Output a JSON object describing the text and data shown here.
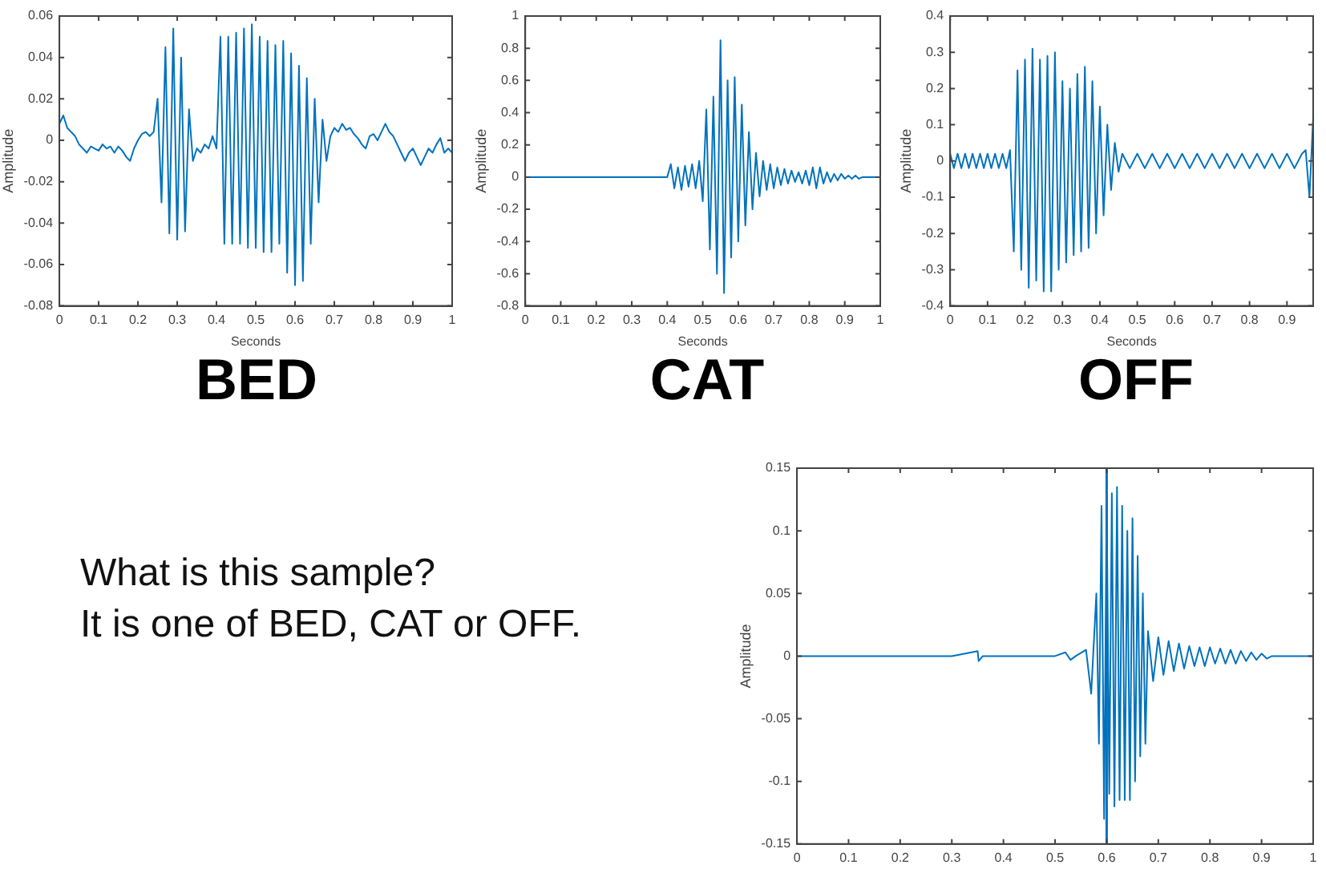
{
  "chart_data": [
    {
      "type": "line",
      "title": "BED",
      "xlabel": "Seconds",
      "ylabel": "Amplitude",
      "xlim": [
        0,
        1
      ],
      "xticks": [
        0,
        0.1,
        0.2,
        0.3,
        0.4,
        0.5,
        0.6,
        0.7,
        0.8,
        0.9,
        1
      ],
      "ylim": [
        -0.08,
        0.06
      ],
      "yticks": [
        -0.08,
        -0.06,
        -0.04,
        -0.02,
        0,
        0.02,
        0.04,
        0.06
      ],
      "grid": false,
      "legend": false,
      "marker": "none",
      "series": [
        {
          "color": "#0072bd",
          "x": [
            0,
            0.01,
            0.02,
            0.03,
            0.04,
            0.05,
            0.06,
            0.07,
            0.08,
            0.09,
            0.1,
            0.11,
            0.12,
            0.13,
            0.14,
            0.15,
            0.16,
            0.17,
            0.18,
            0.19,
            0.2,
            0.21,
            0.22,
            0.23,
            0.24,
            0.25,
            0.26,
            0.27,
            0.28,
            0.29,
            0.3,
            0.31,
            0.32,
            0.33,
            0.34,
            0.35,
            0.36,
            0.37,
            0.38,
            0.39,
            0.4,
            0.41,
            0.42,
            0.43,
            0.44,
            0.45,
            0.46,
            0.47,
            0.48,
            0.49,
            0.5,
            0.51,
            0.52,
            0.53,
            0.54,
            0.55,
            0.56,
            0.57,
            0.58,
            0.59,
            0.6,
            0.61,
            0.62,
            0.63,
            0.64,
            0.65,
            0.66,
            0.67,
            0.68,
            0.69,
            0.7,
            0.71,
            0.72,
            0.73,
            0.74,
            0.75,
            0.76,
            0.77,
            0.78,
            0.79,
            0.8,
            0.81,
            0.82,
            0.83,
            0.84,
            0.85,
            0.86,
            0.87,
            0.88,
            0.89,
            0.9,
            0.91,
            0.92,
            0.93,
            0.94,
            0.95,
            0.96,
            0.97,
            0.98,
            0.99,
            1
          ],
          "values": [
            0.008,
            0.012,
            0.006,
            0.004,
            0.002,
            -0.002,
            -0.004,
            -0.006,
            -0.003,
            -0.004,
            -0.005,
            -0.002,
            -0.004,
            -0.003,
            -0.006,
            -0.003,
            -0.005,
            -0.008,
            -0.01,
            -0.004,
            0,
            0.003,
            0.004,
            0.002,
            0.004,
            0.02,
            -0.03,
            0.045,
            -0.045,
            0.054,
            -0.048,
            0.04,
            -0.044,
            0.015,
            -0.01,
            -0.004,
            -0.006,
            -0.002,
            -0.004,
            0.002,
            -0.004,
            0.05,
            -0.05,
            0.05,
            -0.05,
            0.052,
            -0.05,
            0.054,
            -0.052,
            0.056,
            -0.052,
            0.05,
            -0.054,
            0.048,
            -0.054,
            0.046,
            -0.05,
            0.048,
            -0.064,
            0.042,
            -0.07,
            0.036,
            -0.068,
            0.03,
            -0.05,
            0.02,
            -0.03,
            0.01,
            -0.01,
            0.002,
            0.006,
            0.004,
            0.008,
            0.005,
            0.006,
            0.003,
            0.001,
            -0.002,
            -0.004,
            0.002,
            0.003,
            0,
            0.004,
            0.008,
            0.004,
            0.002,
            -0.002,
            -0.006,
            -0.01,
            -0.006,
            -0.004,
            -0.008,
            -0.012,
            -0.008,
            -0.004,
            -0.006,
            -0.002,
            0.001,
            -0.006,
            -0.004,
            -0.006
          ]
        }
      ]
    },
    {
      "type": "line",
      "title": "CAT",
      "xlabel": "Seconds",
      "ylabel": "Amplitude",
      "xlim": [
        0,
        1
      ],
      "xticks": [
        0,
        0.1,
        0.2,
        0.3,
        0.4,
        0.5,
        0.6,
        0.7,
        0.8,
        0.9,
        1
      ],
      "ylim": [
        -0.8,
        1
      ],
      "yticks": [
        -0.8,
        -0.6,
        -0.4,
        -0.2,
        0,
        0.2,
        0.4,
        0.6,
        0.8,
        1
      ],
      "grid": false,
      "legend": false,
      "marker": "none",
      "series": [
        {
          "color": "#0072bd",
          "x": [
            0,
            0.1,
            0.2,
            0.3,
            0.4,
            0.41,
            0.42,
            0.43,
            0.44,
            0.45,
            0.46,
            0.47,
            0.48,
            0.49,
            0.5,
            0.51,
            0.52,
            0.53,
            0.54,
            0.55,
            0.56,
            0.57,
            0.58,
            0.59,
            0.6,
            0.61,
            0.62,
            0.63,
            0.64,
            0.65,
            0.66,
            0.67,
            0.68,
            0.69,
            0.7,
            0.71,
            0.72,
            0.73,
            0.74,
            0.75,
            0.76,
            0.77,
            0.78,
            0.79,
            0.8,
            0.81,
            0.82,
            0.83,
            0.84,
            0.85,
            0.86,
            0.87,
            0.88,
            0.89,
            0.9,
            0.91,
            0.92,
            0.93,
            0.94,
            0.95,
            0.96,
            0.97,
            0.98,
            0.99,
            1
          ],
          "values": [
            0,
            0,
            0,
            0,
            0,
            0.08,
            -0.07,
            0.06,
            -0.08,
            0.07,
            -0.06,
            0.08,
            -0.07,
            0.1,
            -0.15,
            0.42,
            -0.45,
            0.5,
            -0.6,
            0.85,
            -0.72,
            0.6,
            -0.5,
            0.62,
            -0.4,
            0.45,
            -0.3,
            0.28,
            -0.2,
            0.15,
            -0.12,
            0.1,
            -0.08,
            0.08,
            -0.07,
            0.06,
            -0.05,
            0.05,
            -0.04,
            0.04,
            -0.03,
            0.03,
            -0.04,
            0.04,
            -0.05,
            0.06,
            -0.07,
            0.06,
            -0.04,
            0.03,
            -0.03,
            0.02,
            -0.02,
            0.02,
            -0.01,
            0.01,
            -0.01,
            0.01,
            -0.01,
            0,
            0,
            0,
            0,
            0,
            0
          ]
        }
      ]
    },
    {
      "type": "line",
      "title": "OFF",
      "xlabel": "Seconds",
      "ylabel": "Amplitude",
      "xlim": [
        0,
        0.97
      ],
      "xticks": [
        0,
        0.1,
        0.2,
        0.3,
        0.4,
        0.5,
        0.6,
        0.7,
        0.8,
        0.9
      ],
      "ylim": [
        -0.4,
        0.4
      ],
      "yticks": [
        -0.4,
        -0.3,
        -0.2,
        -0.1,
        0,
        0.1,
        0.2,
        0.3,
        0.4
      ],
      "grid": false,
      "legend": false,
      "marker": "none",
      "series": [
        {
          "color": "#0072bd",
          "x": [
            0,
            0.01,
            0.02,
            0.03,
            0.04,
            0.05,
            0.06,
            0.07,
            0.08,
            0.09,
            0.1,
            0.11,
            0.12,
            0.13,
            0.14,
            0.15,
            0.16,
            0.17,
            0.18,
            0.19,
            0.2,
            0.21,
            0.22,
            0.23,
            0.24,
            0.25,
            0.26,
            0.27,
            0.28,
            0.29,
            0.3,
            0.31,
            0.32,
            0.33,
            0.34,
            0.35,
            0.36,
            0.37,
            0.38,
            0.39,
            0.4,
            0.41,
            0.42,
            0.43,
            0.44,
            0.45,
            0.46,
            0.48,
            0.5,
            0.52,
            0.54,
            0.56,
            0.58,
            0.6,
            0.62,
            0.64,
            0.66,
            0.68,
            0.7,
            0.72,
            0.74,
            0.76,
            0.78,
            0.8,
            0.82,
            0.84,
            0.86,
            0.88,
            0.9,
            0.92,
            0.94,
            0.95,
            0.96,
            0.97
          ],
          "values": [
            0.02,
            -0.02,
            0.02,
            -0.02,
            0.02,
            -0.02,
            0.02,
            -0.02,
            0.02,
            -0.02,
            0.02,
            -0.02,
            0.02,
            -0.02,
            0.02,
            -0.02,
            0.03,
            -0.25,
            0.25,
            -0.3,
            0.28,
            -0.35,
            0.31,
            -0.33,
            0.28,
            -0.36,
            0.29,
            -0.36,
            0.3,
            -0.3,
            0.22,
            -0.28,
            0.2,
            -0.26,
            0.24,
            -0.25,
            0.26,
            -0.24,
            0.22,
            -0.2,
            0.15,
            -0.15,
            0.1,
            -0.08,
            0.05,
            -0.03,
            0.02,
            -0.02,
            0.02,
            -0.02,
            0.02,
            -0.02,
            0.02,
            -0.02,
            0.02,
            -0.02,
            0.02,
            -0.02,
            0.02,
            -0.02,
            0.02,
            -0.02,
            0.02,
            -0.02,
            0.02,
            -0.02,
            0.02,
            -0.02,
            0.02,
            -0.02,
            0.02,
            0.03,
            -0.1,
            0.12
          ]
        }
      ]
    },
    {
      "type": "line",
      "ylabel": "Amplitude",
      "annotations": [
        "What is this sample?\nIt is one of BED, CAT or OFF."
      ],
      "xlim": [
        0,
        1
      ],
      "xticks": [
        0,
        0.1,
        0.2,
        0.3,
        0.4,
        0.5,
        0.6,
        0.7,
        0.8,
        0.9,
        1
      ],
      "ylim": [
        -0.15,
        0.15
      ],
      "yticks": [
        -0.15,
        -0.1,
        -0.05,
        0,
        0.05,
        0.1,
        0.15
      ],
      "grid": false,
      "legend": false,
      "marker": "none",
      "ref_lines": [
        {
          "axis": "x",
          "value": 0.6,
          "color": "#0072bd"
        }
      ],
      "series": [
        {
          "color": "#0072bd",
          "x": [
            0,
            0.1,
            0.2,
            0.3,
            0.35,
            0.352,
            0.36,
            0.5,
            0.52,
            0.53,
            0.54,
            0.56,
            0.57,
            0.58,
            0.585,
            0.59,
            0.595,
            0.6,
            0.605,
            0.61,
            0.615,
            0.62,
            0.625,
            0.63,
            0.635,
            0.64,
            0.645,
            0.65,
            0.655,
            0.66,
            0.665,
            0.67,
            0.675,
            0.68,
            0.69,
            0.7,
            0.71,
            0.72,
            0.73,
            0.74,
            0.75,
            0.76,
            0.77,
            0.78,
            0.79,
            0.8,
            0.81,
            0.82,
            0.83,
            0.84,
            0.85,
            0.86,
            0.87,
            0.88,
            0.89,
            0.9,
            0.91,
            0.92,
            1
          ],
          "values": [
            0,
            0,
            0,
            0,
            0.004,
            -0.004,
            0,
            0,
            0.003,
            -0.003,
            0,
            0.005,
            -0.03,
            0.05,
            -0.07,
            0.12,
            -0.13,
            0.125,
            -0.11,
            0.13,
            -0.12,
            0.135,
            -0.115,
            0.12,
            -0.115,
            0.1,
            -0.115,
            0.11,
            -0.1,
            0.08,
            -0.08,
            0.05,
            -0.07,
            0.02,
            -0.02,
            0.015,
            -0.015,
            0.012,
            -0.012,
            0.01,
            -0.01,
            0.008,
            -0.008,
            0.007,
            -0.008,
            0.007,
            -0.006,
            0.006,
            -0.006,
            0.005,
            -0.006,
            0.004,
            -0.004,
            0.003,
            -0.003,
            0.002,
            -0.002,
            0,
            0
          ]
        }
      ]
    }
  ]
}
